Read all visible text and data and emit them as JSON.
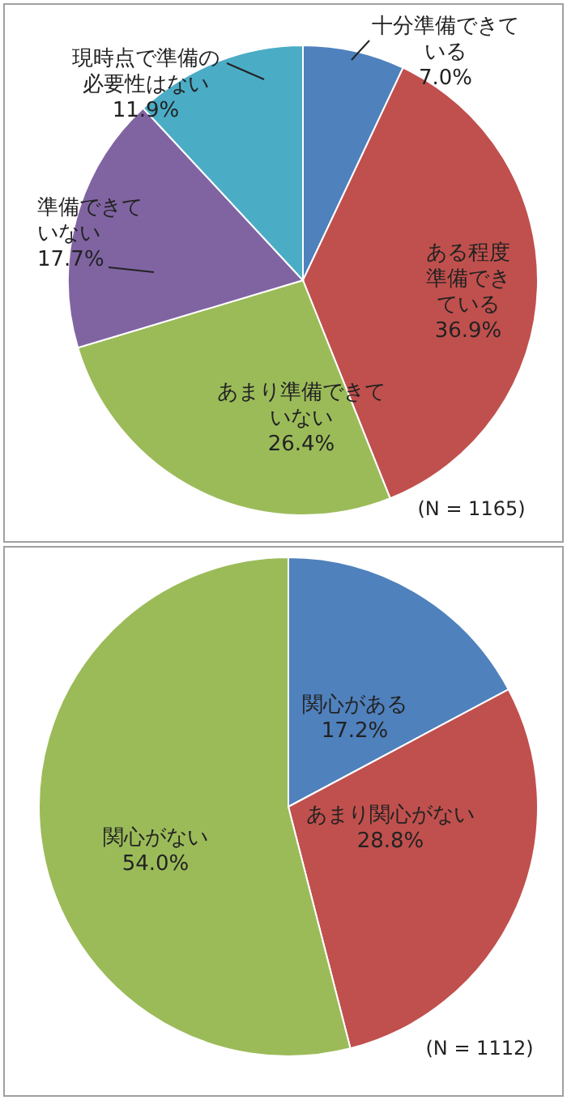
{
  "chart_data": [
    {
      "type": "pie",
      "categories": [
        "十分準備できている",
        "ある程度準備できている",
        "あまり準備できていない",
        "準備できていない",
        "現時点で準備の必要性はない"
      ],
      "values": [
        7.0,
        36.9,
        26.4,
        17.7,
        11.9
      ],
      "value_labels": [
        "7.0%",
        "36.9%",
        "26.4%",
        "17.7%",
        "11.9%"
      ],
      "colors": [
        "#4f81bd",
        "#c0504d",
        "#9bbb59",
        "#8064a2",
        "#4bacc6"
      ],
      "annotations": [
        "(N = 1165)"
      ],
      "legend": false
    },
    {
      "type": "pie",
      "categories": [
        "関心がある",
        "あまり関心がない",
        "関心がない"
      ],
      "values": [
        17.2,
        28.8,
        54.0
      ],
      "value_labels": [
        "17.2%",
        "28.8%",
        "54.0%"
      ],
      "colors": [
        "#4f81bd",
        "#c0504d",
        "#9bbb59"
      ],
      "annotations": [
        "(N = 1112)"
      ],
      "legend": false
    }
  ]
}
